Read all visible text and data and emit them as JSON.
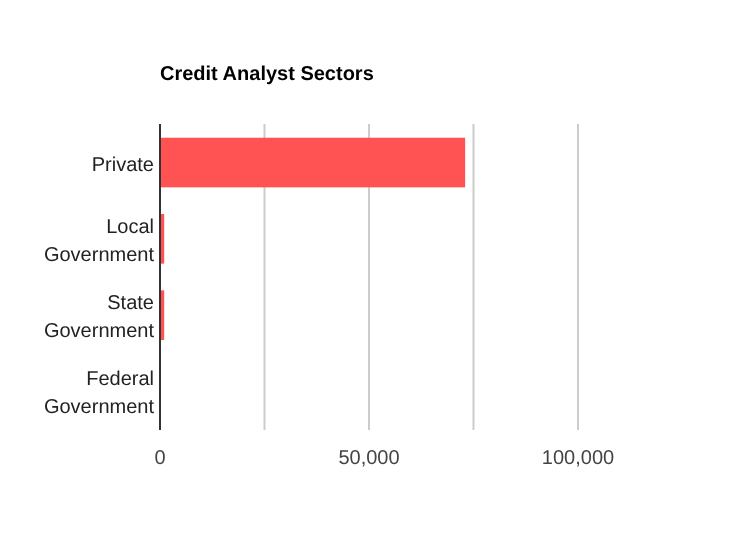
{
  "chart_data": {
    "type": "bar",
    "title": "Credit Analyst Sectors",
    "orientation": "horizontal",
    "categories": [
      "Private",
      "Local\nGovernment",
      "State\nGovernment",
      "Federal\nGovernment"
    ],
    "values": [
      73000,
      1000,
      1000,
      0
    ],
    "color": "#ff5252",
    "xlim": [
      0,
      100000
    ],
    "xticks": [
      0,
      {
        "value": 25000,
        "label": null
      },
      {
        "value": 50000,
        "label": "50,000"
      },
      {
        "value": 75000,
        "label": null
      },
      {
        "value": 100000,
        "label": "100,000"
      }
    ],
    "grid": "x"
  }
}
